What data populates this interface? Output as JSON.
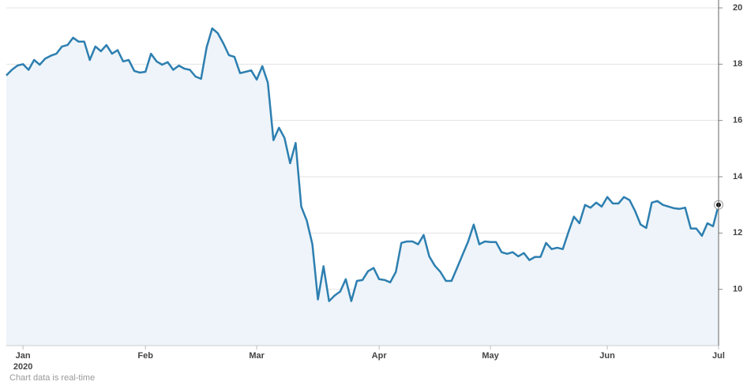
{
  "chart_data": {
    "type": "line",
    "values": [
      17.6,
      17.8,
      17.95,
      18.0,
      17.8,
      18.15,
      17.98,
      18.2,
      18.3,
      18.37,
      18.63,
      18.68,
      18.94,
      18.8,
      18.8,
      18.15,
      18.63,
      18.46,
      18.68,
      18.37,
      18.5,
      18.1,
      18.15,
      17.76,
      17.7,
      17.73,
      18.37,
      18.1,
      17.98,
      18.07,
      17.8,
      17.95,
      17.84,
      17.8,
      17.56,
      17.48,
      18.6,
      19.27,
      19.1,
      18.74,
      18.32,
      18.26,
      17.68,
      17.73,
      17.78,
      17.45,
      17.93,
      17.34,
      15.3,
      15.74,
      15.38,
      14.48,
      15.2,
      12.94,
      12.44,
      11.6,
      9.64,
      10.82,
      9.58,
      9.78,
      9.92,
      10.36,
      9.58,
      10.3,
      10.33,
      10.64,
      10.76,
      10.36,
      10.33,
      10.25,
      10.62,
      11.65,
      11.7,
      11.7,
      11.6,
      11.93,
      11.17,
      10.84,
      10.62,
      10.3,
      10.3,
      10.76,
      11.23,
      11.7,
      12.3,
      11.6,
      11.7,
      11.68,
      11.68,
      11.32,
      11.26,
      11.32,
      11.17,
      11.29,
      11.04,
      11.15,
      11.15,
      11.65,
      11.43,
      11.48,
      11.43,
      12.02,
      12.58,
      12.35,
      13.0,
      12.9,
      13.08,
      12.94,
      13.28,
      13.05,
      13.05,
      13.28,
      13.17,
      12.78,
      12.3,
      12.18,
      13.08,
      13.14,
      13.0,
      12.94,
      12.88,
      12.86,
      12.9,
      12.16,
      12.16,
      11.9,
      12.35,
      12.24,
      13.0
    ],
    "color": "#2d7fb0",
    "fill": "#eef4f9",
    "xlim": [
      0,
      128
    ],
    "xticks": [
      {
        "value": 3,
        "label": "Jan"
      },
      {
        "value": 25,
        "label": "Feb"
      },
      {
        "value": 45,
        "label": "Mar"
      },
      {
        "value": 67,
        "label": "Apr"
      },
      {
        "value": 87,
        "label": "May"
      },
      {
        "value": 108,
        "label": "Jun"
      },
      {
        "value": 128,
        "label": "Jul"
      }
    ],
    "year_label": "2020",
    "ylim": [
      8,
      20
    ],
    "yticks": [
      10,
      12,
      14,
      16,
      18,
      20
    ],
    "grid": true,
    "note": "Chart data is real-time"
  }
}
